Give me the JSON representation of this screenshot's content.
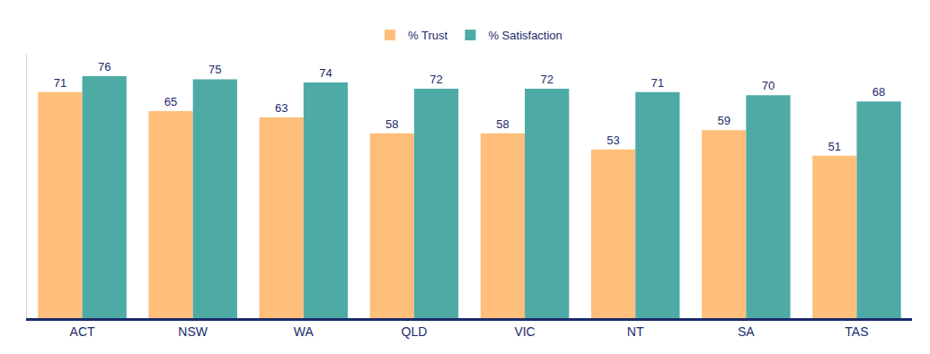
{
  "chart_data": {
    "type": "bar",
    "categories": [
      "ACT",
      "NSW",
      "WA",
      "QLD",
      "VIC",
      "NT",
      "SA",
      "TAS"
    ],
    "series": [
      {
        "name": "% Trust",
        "color": "#FFBE7A",
        "values": [
          71,
          65,
          63,
          58,
          58,
          53,
          59,
          51
        ]
      },
      {
        "name": "% Satisfaction",
        "color": "#4EAAA5",
        "values": [
          76,
          75,
          74,
          72,
          72,
          71,
          70,
          68
        ]
      }
    ],
    "ylim": [
      0,
      83
    ],
    "grid": false,
    "legend": "top",
    "data_labels": true,
    "tick_labels": "x"
  }
}
